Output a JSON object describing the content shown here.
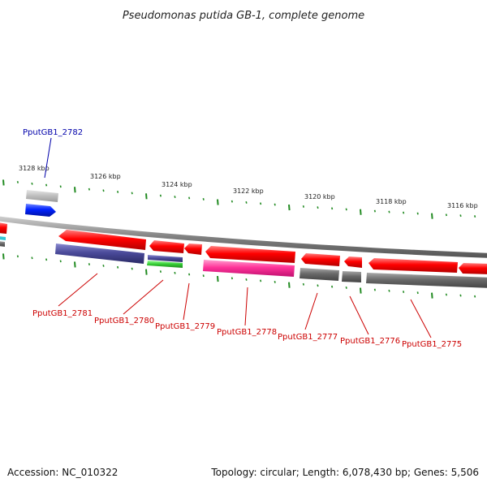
{
  "title": "Pseudomonas putida GB-1, complete genome",
  "footer": {
    "accession": "Accession: NC_010322",
    "summary": "Topology: circular; Length: 6,078,430 bp; Genes: 5,506"
  },
  "colors": {
    "red": "#ff0000",
    "dark_red": "#cc0000",
    "navy": "#4a4a9a",
    "green": "#33cc33",
    "magenta": "#ff3399",
    "gray": "#666666",
    "blue": "#0022ff",
    "light_gray": "#c0c0c0",
    "tick_green": "#228b22",
    "label_red": "#cc0000",
    "label_blue": "#0000aa"
  },
  "scale_labels": [
    "3128 kbp",
    "3126 kbp",
    "3124 kbp",
    "3122 kbp",
    "3120 kbp",
    "3118 kbp",
    "3116 kbp"
  ],
  "gene_labels": [
    {
      "text": "PputGB1_2782",
      "color": "blue"
    },
    {
      "text": "PputGB1_2781",
      "color": "red"
    },
    {
      "text": "PputGB1_2780",
      "color": "red"
    },
    {
      "text": "PputGB1_2779",
      "color": "red"
    },
    {
      "text": "PputGB1_2778",
      "color": "red"
    },
    {
      "text": "PputGB1_2777",
      "color": "red"
    },
    {
      "text": "PputGB1_2776",
      "color": "red"
    },
    {
      "text": "PputGB1_2775",
      "color": "red"
    }
  ]
}
